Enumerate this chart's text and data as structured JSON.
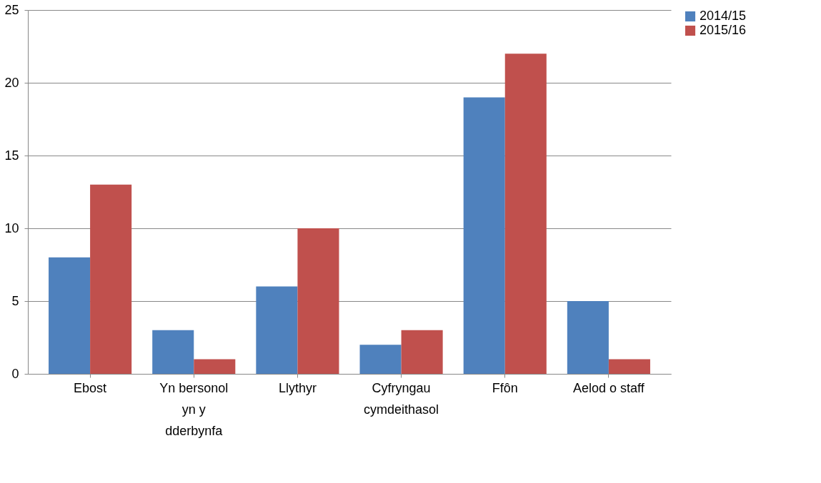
{
  "chart_data": {
    "type": "bar",
    "categories": [
      "Ebost",
      "Yn bersonol yn y dderbynfa",
      "Llythyr",
      "Cyfryngau cymdeithasol",
      "Ffôn",
      "Aelod o staff"
    ],
    "series": [
      {
        "name": "2014/15",
        "color": "#4f81bd",
        "values": [
          8,
          3,
          6,
          2,
          19,
          5
        ]
      },
      {
        "name": "2015/16",
        "color": "#c0504d",
        "values": [
          13,
          1,
          10,
          3,
          22,
          1
        ]
      }
    ],
    "ylim": [
      0,
      25
    ],
    "yticks": [
      0,
      5,
      10,
      15,
      20,
      25
    ],
    "grid": "y",
    "legend": "right"
  }
}
